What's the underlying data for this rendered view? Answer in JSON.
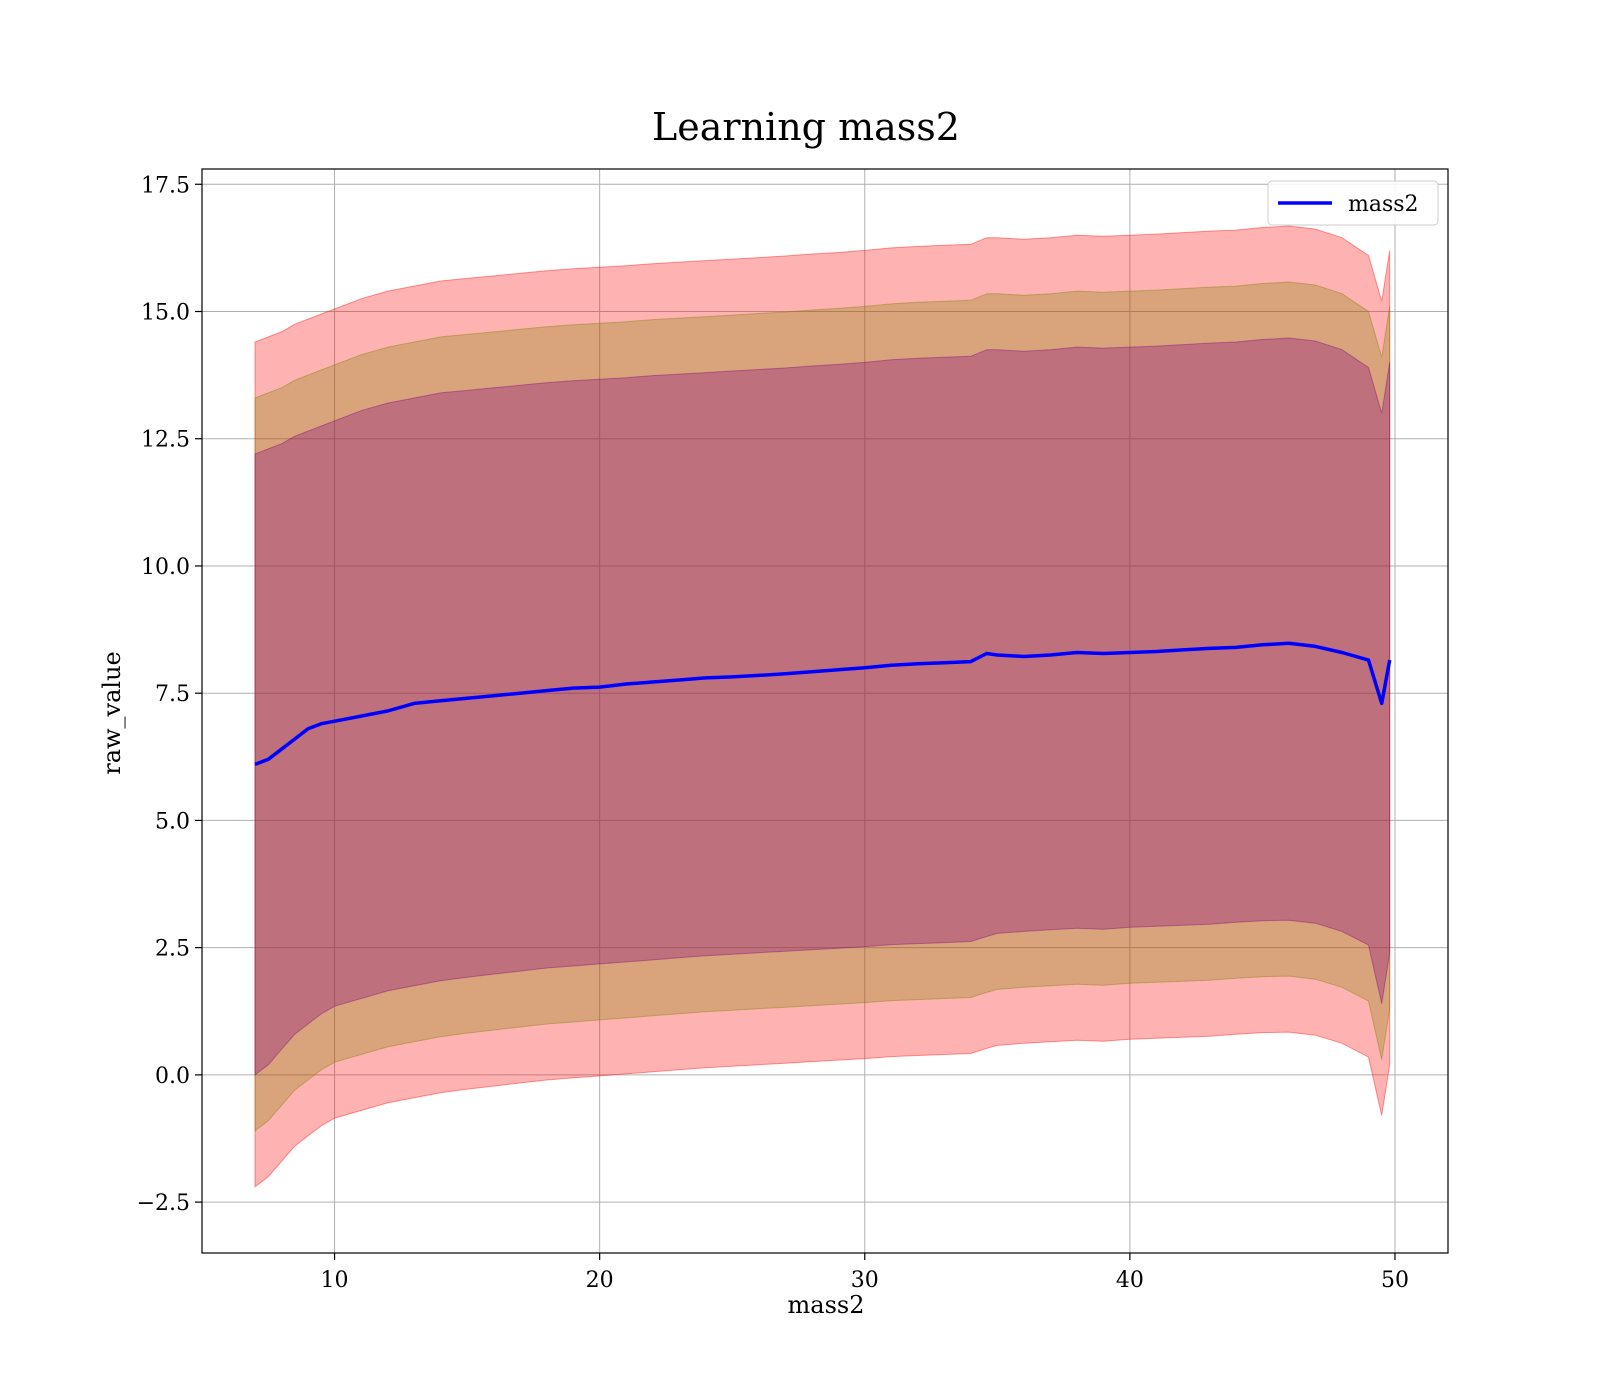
{
  "chart_data": {
    "type": "line",
    "title": "Learning mass2",
    "xlabel": "mass2",
    "ylabel": "raw_value",
    "xlim": [
      5,
      52
    ],
    "ylim": [
      -3.5,
      17.8
    ],
    "xticks": [
      10,
      20,
      30,
      40,
      50
    ],
    "xtick_labels": [
      "10",
      "20",
      "30",
      "40",
      "50"
    ],
    "yticks": [
      -2.5,
      0.0,
      2.5,
      5.0,
      7.5,
      10.0,
      12.5,
      15.0,
      17.5
    ],
    "ytick_labels": [
      "−2.5",
      "0.0",
      "2.5",
      "5.0",
      "7.5",
      "10.0",
      "12.5",
      "15.0",
      "17.5"
    ],
    "grid": true,
    "legend": {
      "placement": "top-right",
      "entries": [
        "mass2"
      ]
    },
    "colors": {
      "line": "#0000ff",
      "band_outer": "#ff0000",
      "band_middle": "#808000",
      "band_inner": "#800080"
    },
    "x": [
      7,
      7.5,
      8,
      8.5,
      9,
      9.5,
      10,
      11,
      12,
      13,
      14,
      15,
      16,
      17,
      18,
      19,
      20,
      21,
      22,
      23,
      24,
      25,
      26,
      27,
      28,
      29,
      30,
      31,
      32,
      33,
      34,
      34.6,
      35,
      36,
      37,
      38,
      39,
      40,
      41,
      42,
      43,
      44,
      45,
      46,
      47,
      48,
      49,
      49.5,
      49.8
    ],
    "series": [
      {
        "name": "mass2",
        "values": [
          6.1,
          6.2,
          6.4,
          6.6,
          6.8,
          6.9,
          6.95,
          7.05,
          7.15,
          7.3,
          7.35,
          7.4,
          7.45,
          7.5,
          7.55,
          7.6,
          7.62,
          7.68,
          7.72,
          7.76,
          7.8,
          7.82,
          7.85,
          7.88,
          7.92,
          7.96,
          8.0,
          8.05,
          8.08,
          8.1,
          8.12,
          8.28,
          8.25,
          8.22,
          8.25,
          8.3,
          8.28,
          8.3,
          8.32,
          8.35,
          8.38,
          8.4,
          8.45,
          8.48,
          8.42,
          8.3,
          8.15,
          7.3,
          8.15
        ]
      }
    ],
    "bands": [
      {
        "sigma": 3,
        "color": "band_outer",
        "lower": [
          -2.2,
          -2.0,
          -1.7,
          -1.4,
          -1.2,
          -1.0,
          -0.85,
          -0.7,
          -0.55,
          -0.45,
          -0.35,
          -0.28,
          -0.22,
          -0.16,
          -0.1,
          -0.06,
          -0.02,
          0.02,
          0.06,
          0.1,
          0.14,
          0.17,
          0.2,
          0.23,
          0.26,
          0.29,
          0.32,
          0.36,
          0.38,
          0.4,
          0.42,
          0.52,
          0.58,
          0.62,
          0.65,
          0.68,
          0.66,
          0.7,
          0.72,
          0.74,
          0.76,
          0.8,
          0.83,
          0.84,
          0.78,
          0.62,
          0.35,
          -0.8,
          0.2
        ],
        "upper": [
          14.4,
          14.5,
          14.6,
          14.75,
          14.85,
          14.95,
          15.05,
          15.25,
          15.4,
          15.5,
          15.6,
          15.65,
          15.7,
          15.75,
          15.8,
          15.84,
          15.87,
          15.9,
          15.94,
          15.97,
          16.0,
          16.03,
          16.06,
          16.09,
          16.13,
          16.16,
          16.2,
          16.25,
          16.28,
          16.3,
          16.32,
          16.45,
          16.45,
          16.42,
          16.45,
          16.5,
          16.48,
          16.5,
          16.52,
          16.55,
          16.58,
          16.6,
          16.65,
          16.68,
          16.62,
          16.45,
          16.1,
          15.2,
          16.2
        ]
      },
      {
        "sigma": 2,
        "color": "band_middle",
        "lower": [
          -1.1,
          -0.9,
          -0.6,
          -0.3,
          -0.1,
          0.1,
          0.25,
          0.4,
          0.55,
          0.65,
          0.75,
          0.82,
          0.88,
          0.94,
          1.0,
          1.04,
          1.08,
          1.12,
          1.16,
          1.2,
          1.24,
          1.27,
          1.3,
          1.33,
          1.36,
          1.39,
          1.42,
          1.46,
          1.48,
          1.5,
          1.52,
          1.62,
          1.68,
          1.72,
          1.75,
          1.78,
          1.76,
          1.8,
          1.82,
          1.84,
          1.86,
          1.9,
          1.93,
          1.94,
          1.88,
          1.72,
          1.45,
          0.3,
          1.3
        ],
        "upper": [
          13.3,
          13.4,
          13.5,
          13.65,
          13.75,
          13.85,
          13.95,
          14.15,
          14.3,
          14.4,
          14.5,
          14.55,
          14.6,
          14.65,
          14.7,
          14.74,
          14.77,
          14.8,
          14.84,
          14.87,
          14.9,
          14.93,
          14.96,
          14.99,
          15.03,
          15.06,
          15.1,
          15.15,
          15.18,
          15.2,
          15.22,
          15.35,
          15.35,
          15.32,
          15.35,
          15.4,
          15.38,
          15.4,
          15.42,
          15.45,
          15.48,
          15.5,
          15.55,
          15.58,
          15.52,
          15.35,
          15.0,
          14.1,
          15.1
        ]
      },
      {
        "sigma": 1,
        "color": "band_inner",
        "lower": [
          0.0,
          0.2,
          0.5,
          0.8,
          1.0,
          1.2,
          1.35,
          1.5,
          1.65,
          1.75,
          1.85,
          1.92,
          1.98,
          2.04,
          2.1,
          2.14,
          2.18,
          2.22,
          2.26,
          2.3,
          2.34,
          2.37,
          2.4,
          2.43,
          2.46,
          2.49,
          2.52,
          2.56,
          2.58,
          2.6,
          2.62,
          2.72,
          2.78,
          2.82,
          2.85,
          2.88,
          2.86,
          2.9,
          2.92,
          2.94,
          2.96,
          3.0,
          3.03,
          3.04,
          2.98,
          2.82,
          2.55,
          1.4,
          2.4
        ],
        "upper": [
          12.2,
          12.3,
          12.4,
          12.55,
          12.65,
          12.75,
          12.85,
          13.05,
          13.2,
          13.3,
          13.4,
          13.45,
          13.5,
          13.55,
          13.6,
          13.64,
          13.67,
          13.7,
          13.74,
          13.77,
          13.8,
          13.83,
          13.86,
          13.89,
          13.93,
          13.96,
          14.0,
          14.05,
          14.08,
          14.1,
          14.12,
          14.25,
          14.25,
          14.22,
          14.25,
          14.3,
          14.28,
          14.3,
          14.32,
          14.35,
          14.38,
          14.4,
          14.45,
          14.48,
          14.42,
          14.25,
          13.9,
          13.0,
          14.0
        ]
      }
    ]
  }
}
